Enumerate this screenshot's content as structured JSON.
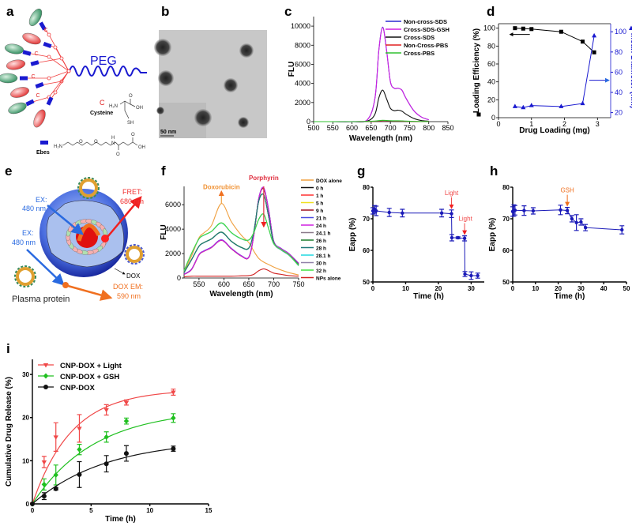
{
  "panels": {
    "a": "a",
    "b": "b",
    "c": "c",
    "d": "d",
    "e": "e",
    "f": "f",
    "g": "g",
    "h": "h",
    "i": "i"
  },
  "panel_a": {
    "peg_label": "PEG",
    "cysteine_symbol": "C",
    "cysteine_label": "Cysteine",
    "ebes_label": "Ebes",
    "cys_atoms": [
      "H₂N",
      "O",
      "OH",
      "SH"
    ],
    "ebes_atoms": [
      "H₂N",
      "O",
      "O",
      "H",
      "N",
      "O",
      "O",
      "OH"
    ],
    "arm_symbol": "C"
  },
  "panel_b": {
    "scale_bar": "50 nm"
  },
  "panel_e": {
    "ex1_a": "EX:",
    "ex1_b": "480 nm",
    "ex2_a": "EX:",
    "ex2_b": "480 nm",
    "fret_a": "FRET:",
    "fret_b": "680 nm",
    "dox": "DOX",
    "dox_em_a": "DOX EM:",
    "dox_em_b": "590 nm",
    "plasma": "Plasma protein"
  },
  "chart_data": [
    {
      "id": "c",
      "type": "line",
      "title": "",
      "xlabel": "Wavelength (nm)",
      "ylabel": "FLU",
      "xlim": [
        500,
        850
      ],
      "ylim": [
        0,
        11000
      ],
      "xticks": [
        500,
        550,
        600,
        650,
        700,
        750,
        800,
        850
      ],
      "yticks": [
        0,
        2000,
        4000,
        6000,
        8000,
        10000
      ],
      "legend": "top-right",
      "x": [
        500,
        550,
        600,
        640,
        660,
        670,
        680,
        690,
        700,
        710,
        720,
        730,
        740,
        760,
        780,
        800
      ],
      "series": [
        {
          "name": "Non-cross-SDS",
          "color": "#2a2ad0",
          "values": [
            0,
            0,
            0,
            200,
            2500,
            7500,
            9900,
            7500,
            4200,
            3500,
            3500,
            3300,
            2500,
            1200,
            500,
            200
          ]
        },
        {
          "name": "Cross-SDS-GSH",
          "color": "#d020e0",
          "values": [
            0,
            0,
            0,
            200,
            2500,
            7500,
            9850,
            7500,
            4200,
            3500,
            3500,
            3300,
            2500,
            1200,
            500,
            200
          ]
        },
        {
          "name": "Cross-SDS",
          "color": "#101010",
          "values": [
            0,
            0,
            0,
            60,
            800,
            2500,
            3300,
            2400,
            1400,
            1150,
            1200,
            1100,
            800,
            350,
            120,
            50
          ]
        },
        {
          "name": "Non-Cross-PBS",
          "color": "#e02020",
          "values": [
            0,
            0,
            0,
            10,
            40,
            80,
            100,
            90,
            80,
            70,
            70,
            60,
            40,
            20,
            10,
            5
          ]
        },
        {
          "name": "Cross-PBS",
          "color": "#30c030",
          "values": [
            0,
            0,
            0,
            15,
            60,
            110,
            140,
            120,
            100,
            90,
            90,
            80,
            60,
            30,
            15,
            8
          ]
        }
      ]
    },
    {
      "id": "d",
      "type": "line",
      "xlabel": "Drug Loading (mg)",
      "ylabel": "Loading Efficiency (%)",
      "y2label": "Mean Diameter (nm)",
      "xlim": [
        0,
        3.4
      ],
      "ylim": [
        0,
        105
      ],
      "y2lim": [
        15,
        108
      ],
      "xticks": [
        0,
        1,
        2,
        3
      ],
      "yticks": [
        0,
        20,
        40,
        60,
        80,
        100
      ],
      "y2ticks": [
        20,
        40,
        60,
        80,
        100
      ],
      "x": [
        0.5,
        0.75,
        1,
        1.9,
        2.55,
        2.9
      ],
      "series": [
        {
          "name": "Loading Efficiency",
          "axis": "left",
          "color": "#000000",
          "marker": "square",
          "values": [
            100,
            99.5,
            99,
            96,
            85,
            73
          ]
        },
        {
          "name": "Mean Diameter",
          "axis": "right",
          "color": "#1a1ad0",
          "marker": "triangle",
          "values": [
            26,
            25,
            27,
            26,
            29,
            96
          ]
        }
      ]
    },
    {
      "id": "f",
      "type": "line",
      "xlabel": "Wavelength (nm)",
      "ylabel": "FLU",
      "xlim": [
        520,
        750
      ],
      "ylim": [
        0,
        7500
      ],
      "xticks": [
        550,
        600,
        650,
        700,
        750
      ],
      "yticks": [
        0,
        2000,
        4000,
        6000
      ],
      "legend": "right",
      "annotations": [
        "Doxorubicin",
        "Porphyrin"
      ],
      "x": [
        520,
        535,
        550,
        560,
        575,
        595,
        615,
        635,
        650,
        660,
        670,
        680,
        690,
        700,
        715,
        730,
        750
      ],
      "series": [
        {
          "name": "DOX alone",
          "color": "#f0a040",
          "values": [
            500,
            1800,
            3300,
            3700,
            4300,
            6100,
            4600,
            3500,
            2900,
            2200,
            1600,
            1300,
            1100,
            900,
            650,
            450,
            250
          ]
        },
        {
          "name": "0 h",
          "color": "#111111",
          "values": [
            300,
            700,
            1900,
            2200,
            2500,
            3100,
            2400,
            1800,
            1700,
            3500,
            6500,
            7300,
            5500,
            3000,
            2400,
            2000,
            1200
          ]
        },
        {
          "name": "1 h",
          "color": "#ff3030",
          "values": [
            310,
            720,
            1920,
            2200,
            2520,
            3120,
            2420,
            1820,
            1710,
            3500,
            6520,
            7320,
            5520,
            3010,
            2410,
            2010,
            1210
          ]
        },
        {
          "name": "5 h",
          "color": "#f0e020",
          "values": [
            300,
            710,
            1910,
            2210,
            2510,
            3110,
            2410,
            1810,
            1700,
            3490,
            6490,
            7290,
            5490,
            2990,
            2390,
            1990,
            1190
          ]
        },
        {
          "name": "9 h",
          "color": "#a01020",
          "values": [
            290,
            690,
            1890,
            2190,
            2490,
            3090,
            2390,
            1790,
            1690,
            3480,
            6480,
            7280,
            5480,
            2980,
            2380,
            1980,
            1180
          ]
        },
        {
          "name": "21 h",
          "color": "#4a4ae0",
          "values": [
            320,
            730,
            1930,
            2230,
            2530,
            3130,
            2430,
            1830,
            1720,
            3520,
            6540,
            7380,
            5560,
            3030,
            2420,
            2020,
            1220
          ]
        },
        {
          "name": "24 h",
          "color": "#d020e0",
          "values": [
            300,
            700,
            1900,
            2200,
            2500,
            3100,
            2400,
            1800,
            1700,
            3500,
            6500,
            7400,
            5500,
            3000,
            2400,
            2000,
            1200
          ]
        },
        {
          "name": "24.1 h",
          "color": "#8a7a8a",
          "values": [
            450,
            1500,
            2600,
            2900,
            3200,
            3750,
            3000,
            2500,
            2450,
            3800,
            6300,
            6800,
            5000,
            2900,
            2300,
            1900,
            1100
          ]
        },
        {
          "name": "26 h",
          "color": "#1a7a2a",
          "values": [
            460,
            1510,
            2610,
            2910,
            3210,
            3760,
            3010,
            2510,
            2460,
            3810,
            6310,
            6810,
            5010,
            2910,
            2310,
            1910,
            1110
          ]
        },
        {
          "name": "28 h",
          "color": "#207a7a",
          "values": [
            440,
            1490,
            2590,
            2890,
            3190,
            3740,
            2990,
            2490,
            2440,
            3790,
            6290,
            6790,
            4990,
            2890,
            2290,
            1890,
            1090
          ]
        },
        {
          "name": "28.1 h",
          "color": "#20d8e0",
          "values": [
            600,
            2000,
            3200,
            3500,
            3800,
            4500,
            3700,
            3200,
            3100,
            3700,
            4800,
            5200,
            4000,
            2800,
            2300,
            1900,
            1000
          ]
        },
        {
          "name": "30 h",
          "color": "#9080a8",
          "values": [
            610,
            2010,
            3210,
            3510,
            3810,
            4510,
            3710,
            3210,
            3110,
            3710,
            4810,
            5210,
            4010,
            2810,
            2310,
            1910,
            1010
          ]
        },
        {
          "name": "32 h",
          "color": "#40e040",
          "values": [
            620,
            2020,
            3220,
            3520,
            3820,
            4520,
            3720,
            3220,
            3120,
            3720,
            4820,
            5220,
            4020,
            2820,
            2320,
            1920,
            1020
          ]
        },
        {
          "name": "NPs alone",
          "color": "#d02020",
          "values": [
            100,
            150,
            150,
            150,
            150,
            150,
            150,
            180,
            200,
            300,
            600,
            750,
            600,
            400,
            300,
            200,
            150
          ]
        }
      ]
    },
    {
      "id": "g",
      "type": "line",
      "xlabel": "Time (h)",
      "ylabel": "Eapp (%)",
      "xlim": [
        0,
        34
      ],
      "ylim": [
        50,
        80
      ],
      "xticks": [
        0,
        10,
        20,
        30
      ],
      "yticks": [
        50,
        60,
        70,
        80
      ],
      "annotations": [
        "Light",
        "Light"
      ],
      "annotation_x": [
        24,
        28
      ],
      "x": [
        0,
        0.5,
        1,
        5,
        9,
        21,
        24,
        24.1,
        26,
        28,
        28.1,
        30,
        32
      ],
      "series": [
        {
          "name": "Eapp",
          "color": "#1a1ab8",
          "marker": "circle",
          "values": [
            72.5,
            73,
            72.5,
            72,
            71.8,
            71.8,
            71.6,
            64,
            64,
            63.8,
            52.5,
            52,
            52
          ],
          "errors": [
            1,
            1.2,
            1.5,
            1.3,
            1.2,
            1.2,
            1.2,
            1,
            0.3,
            0.8,
            0.8,
            1.2,
            0.8
          ]
        }
      ]
    },
    {
      "id": "h",
      "type": "line",
      "xlabel": "Time (h)",
      "ylabel": "Eapp (%)",
      "xlim": [
        0,
        50
      ],
      "ylim": [
        50,
        80
      ],
      "xticks": [
        0,
        10,
        20,
        30,
        40,
        50
      ],
      "yticks": [
        50,
        60,
        70,
        80
      ],
      "annotations": [
        "GSH"
      ],
      "annotation_x": [
        24
      ],
      "x": [
        0,
        0.5,
        1,
        5,
        9,
        21,
        24,
        26,
        28,
        30,
        32,
        48
      ],
      "series": [
        {
          "name": "Eapp",
          "color": "#1a1ab8",
          "marker": "circle",
          "values": [
            72.3,
            72.6,
            72.7,
            72.6,
            72.5,
            72.8,
            72.6,
            70,
            68.8,
            69,
            67.2,
            66.5
          ],
          "errors": [
            1.5,
            1.8,
            1.5,
            1.5,
            1,
            1.5,
            1,
            1,
            2.5,
            1,
            1,
            1.3
          ]
        }
      ]
    },
    {
      "id": "i",
      "type": "scatter",
      "xlabel": "Time (h)",
      "ylabel": "Cumulative Drug Release (%)",
      "xlim": [
        0,
        15
      ],
      "ylim": [
        0,
        33.5
      ],
      "xticks": [
        0,
        5,
        10,
        15
      ],
      "yticks": [
        0,
        10,
        20,
        30
      ],
      "legend": "top-left",
      "x": [
        0,
        1,
        2,
        4,
        6.3,
        8,
        12
      ],
      "series": [
        {
          "name": "CNP-DOX + Light",
          "color": "#f04848",
          "marker": "triangle-down",
          "values": [
            0,
            9.7,
            15.5,
            17.5,
            21.8,
            23.5,
            25.9
          ],
          "errors": [
            0,
            1.3,
            3.3,
            3.2,
            1.2,
            0.6,
            0.7
          ],
          "fit": {
            "model": "A*(1-exp(-k*t))",
            "A": 26.5,
            "k": 0.3
          }
        },
        {
          "name": "CNP-DOX + GSH",
          "color": "#20c020",
          "marker": "diamond",
          "values": [
            0,
            4.5,
            6.7,
            12.6,
            15.5,
            19.2,
            19.9
          ],
          "errors": [
            0,
            1.3,
            2.3,
            1.2,
            1.2,
            0.7,
            1
          ],
          "fit": {
            "model": "A*(1-exp(-k*t))",
            "A": 22,
            "k": 0.19
          }
        },
        {
          "name": "CNP-DOX",
          "color": "#111111",
          "marker": "circle",
          "values": [
            0,
            1.8,
            3.5,
            6.8,
            9.3,
            11.7,
            12.8
          ],
          "errors": [
            0,
            0.8,
            0.3,
            3,
            1.9,
            1.8,
            0.6
          ],
          "fit": {
            "model": "A*(1-exp(-k*t))",
            "A": 15,
            "k": 0.16
          }
        }
      ]
    }
  ]
}
